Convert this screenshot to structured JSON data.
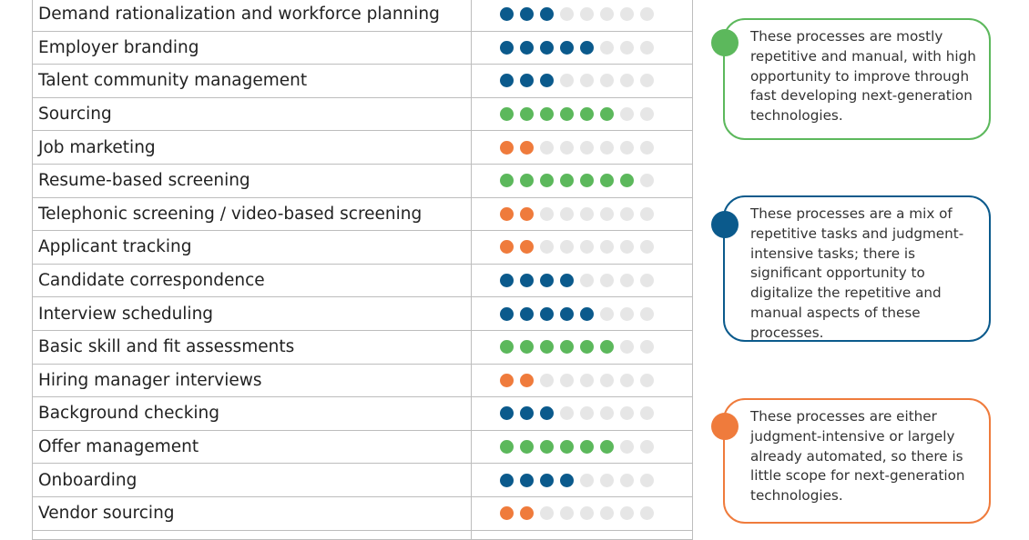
{
  "colors": {
    "green": "#5cb85c",
    "blue": "#0b5a8c",
    "orange": "#ef7b3c",
    "empty": "#e6e6e6"
  },
  "max_dots": 8,
  "rows": [
    {
      "label": "Demand rationalization and workforce planning",
      "filled": 3,
      "color": "blue"
    },
    {
      "label": "Employer branding",
      "filled": 5,
      "color": "blue"
    },
    {
      "label": "Talent community management",
      "filled": 3,
      "color": "blue"
    },
    {
      "label": "Sourcing",
      "filled": 6,
      "color": "green"
    },
    {
      "label": "Job marketing",
      "filled": 2,
      "color": "orange"
    },
    {
      "label": "Resume-based screening",
      "filled": 7,
      "color": "green"
    },
    {
      "label": "Telephonic screening / video-based screening",
      "filled": 2,
      "color": "orange"
    },
    {
      "label": "Applicant tracking",
      "filled": 2,
      "color": "orange"
    },
    {
      "label": "Candidate correspondence",
      "filled": 4,
      "color": "blue"
    },
    {
      "label": "Interview scheduling",
      "filled": 5,
      "color": "blue"
    },
    {
      "label": "Basic skill and fit assessments",
      "filled": 6,
      "color": "green"
    },
    {
      "label": "Hiring manager interviews",
      "filled": 2,
      "color": "orange"
    },
    {
      "label": "Background checking",
      "filled": 3,
      "color": "blue"
    },
    {
      "label": "Offer management",
      "filled": 6,
      "color": "green"
    },
    {
      "label": "Onboarding",
      "filled": 4,
      "color": "blue"
    },
    {
      "label": "Vendor sourcing",
      "filled": 2,
      "color": "orange"
    }
  ],
  "legend": [
    {
      "color": "green",
      "text": "These processes are mostly repetitive and manual, with high opportunity to improve through fast developing next-generation technologies."
    },
    {
      "color": "blue",
      "text": "These processes are a mix of repetitive tasks and judgment-intensive tasks; there is significant opportunity to digitalize the repetitive and manual aspects of these processes."
    },
    {
      "color": "orange",
      "text": "These processes are either judgment-intensive or largely already automated, so there is little scope for next-generation technologies."
    }
  ]
}
